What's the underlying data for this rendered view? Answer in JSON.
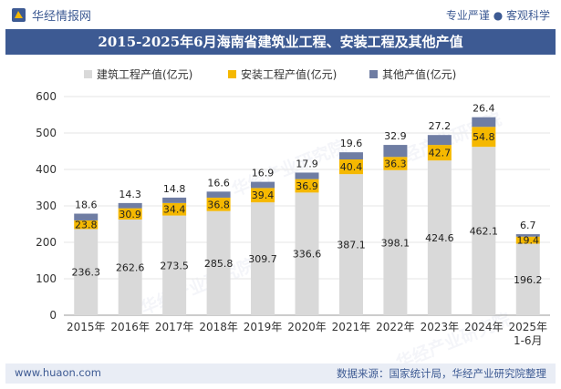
{
  "header": {
    "brand": "华经情报网",
    "tagline": "专业严谨 ● 客观科学",
    "title": "2015-2025年6月海南省建筑业工程、安装工程及其他产值"
  },
  "footer": {
    "website": "www.huaon.com",
    "source": "数据来源：国家统计局，华经产业研究院整理"
  },
  "watermark": "华经产业研究院",
  "colors": {
    "construction": "#d9d9d9",
    "installation": "#f5b800",
    "other": "#6f7da3"
  },
  "chart_data": {
    "type": "bar",
    "stacked": true,
    "categories": [
      "2015年",
      "2016年",
      "2017年",
      "2018年",
      "2019年",
      "2020年",
      "2021年",
      "2022年",
      "2023年",
      "2024年",
      "2025年\n1-6月"
    ],
    "series": [
      {
        "name": "建筑工程产值(亿元)",
        "values": [
          236.3,
          262.6,
          273.5,
          285.8,
          309.7,
          336.6,
          387.1,
          398.1,
          424.6,
          462.1,
          196.2
        ]
      },
      {
        "name": "安装工程产值(亿元)",
        "values": [
          23.8,
          30.9,
          34.4,
          36.8,
          39.4,
          36.9,
          40.4,
          36.3,
          42.7,
          54.8,
          19.4
        ]
      },
      {
        "name": "其他产值(亿元)",
        "values": [
          18.6,
          14.3,
          14.8,
          16.6,
          16.9,
          17.9,
          19.6,
          32.9,
          27.2,
          26.4,
          6.7
        ]
      }
    ],
    "yticks": [
      0,
      100,
      200,
      300,
      400,
      500,
      600
    ],
    "ylim": [
      0,
      600
    ],
    "legend_position": "top-center"
  }
}
